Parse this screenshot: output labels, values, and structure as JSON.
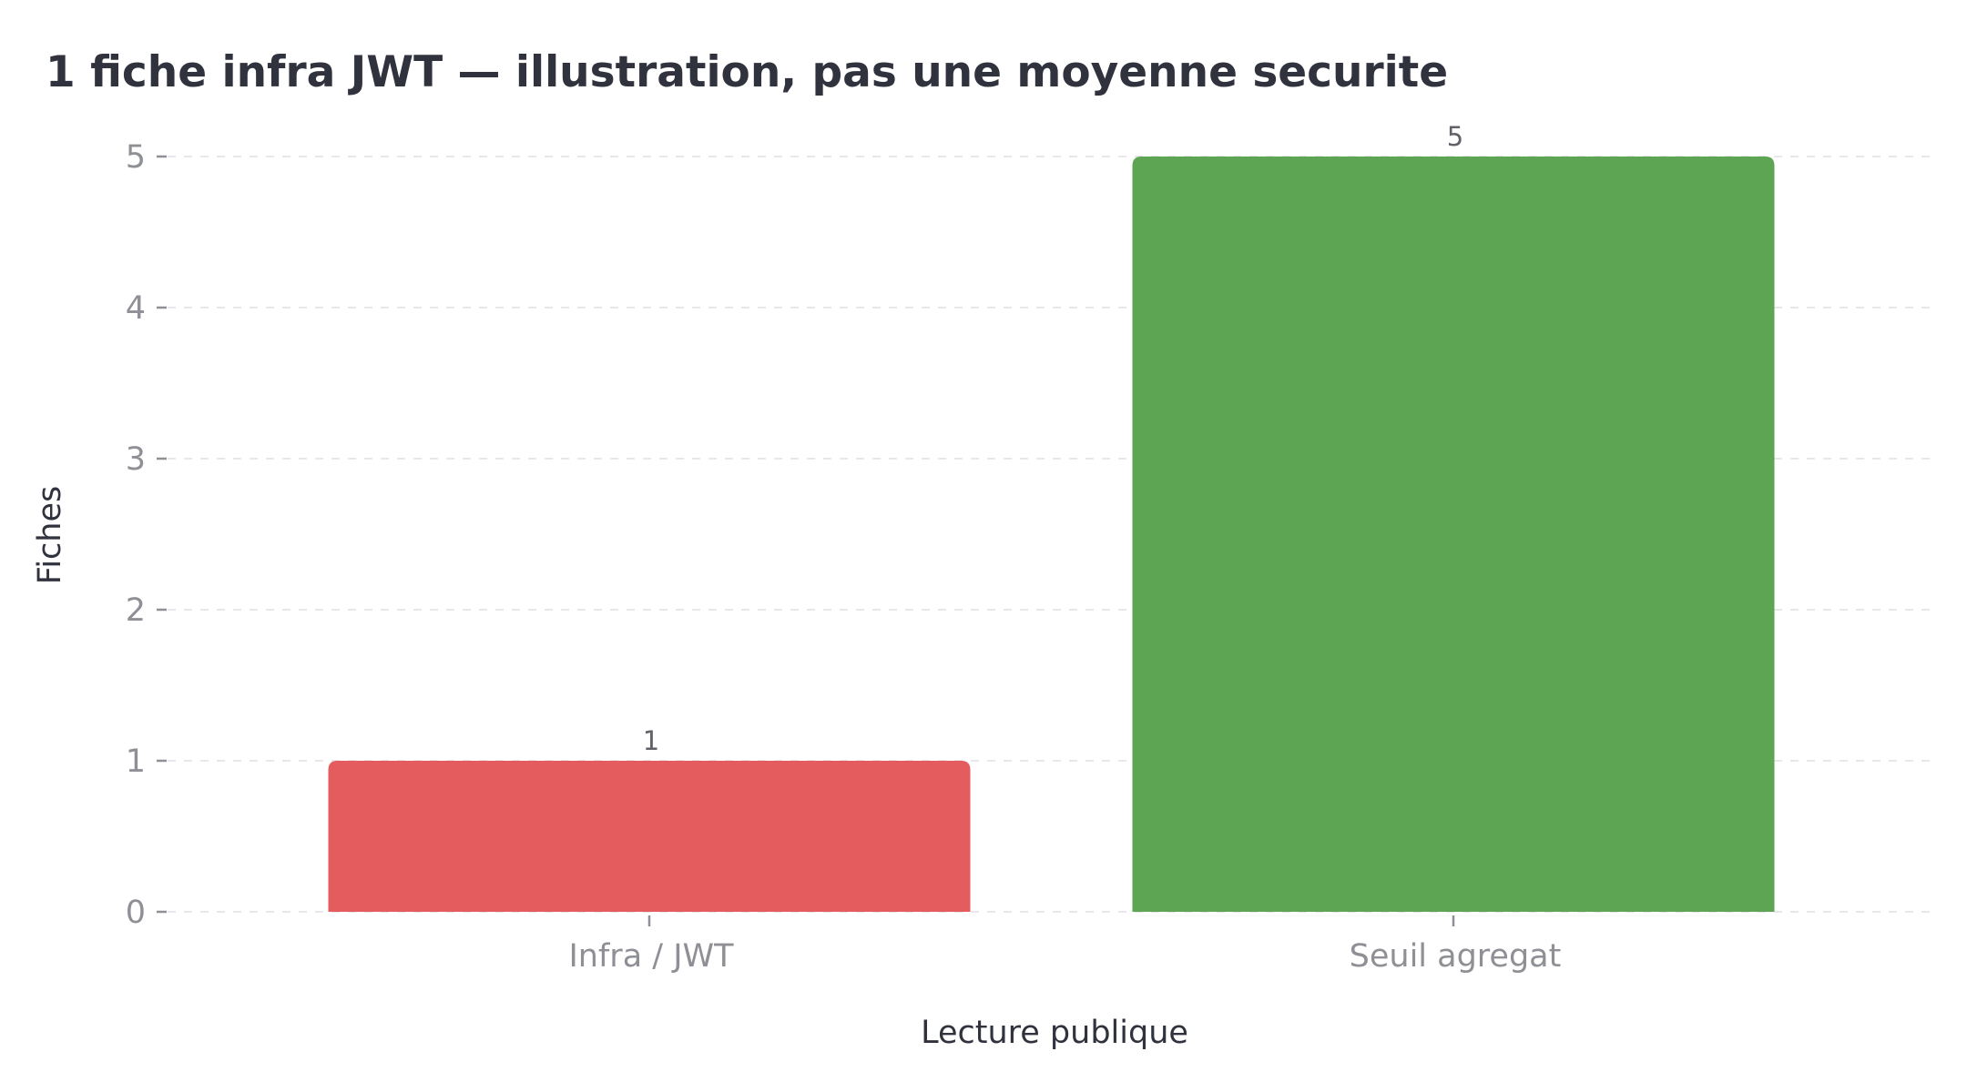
{
  "chart_data": {
    "type": "bar",
    "title": "1 fiche infra JWT — illustration, pas une moyenne securite",
    "xlabel": "Lecture publique",
    "ylabel": "Fiches",
    "categories": [
      "Infra / JWT",
      "Seuil agregat"
    ],
    "values": [
      1,
      5
    ],
    "data_labels": [
      "1",
      "5"
    ],
    "colors": [
      "#e55c5e",
      "#5da553"
    ],
    "ylim": [
      0,
      5
    ],
    "yticks": [
      0,
      1,
      2,
      3,
      4,
      5
    ],
    "ytick_labels": [
      "0",
      "1",
      "2",
      "3",
      "4",
      "5"
    ],
    "grid": "horizontal dashed",
    "legend": "none"
  }
}
